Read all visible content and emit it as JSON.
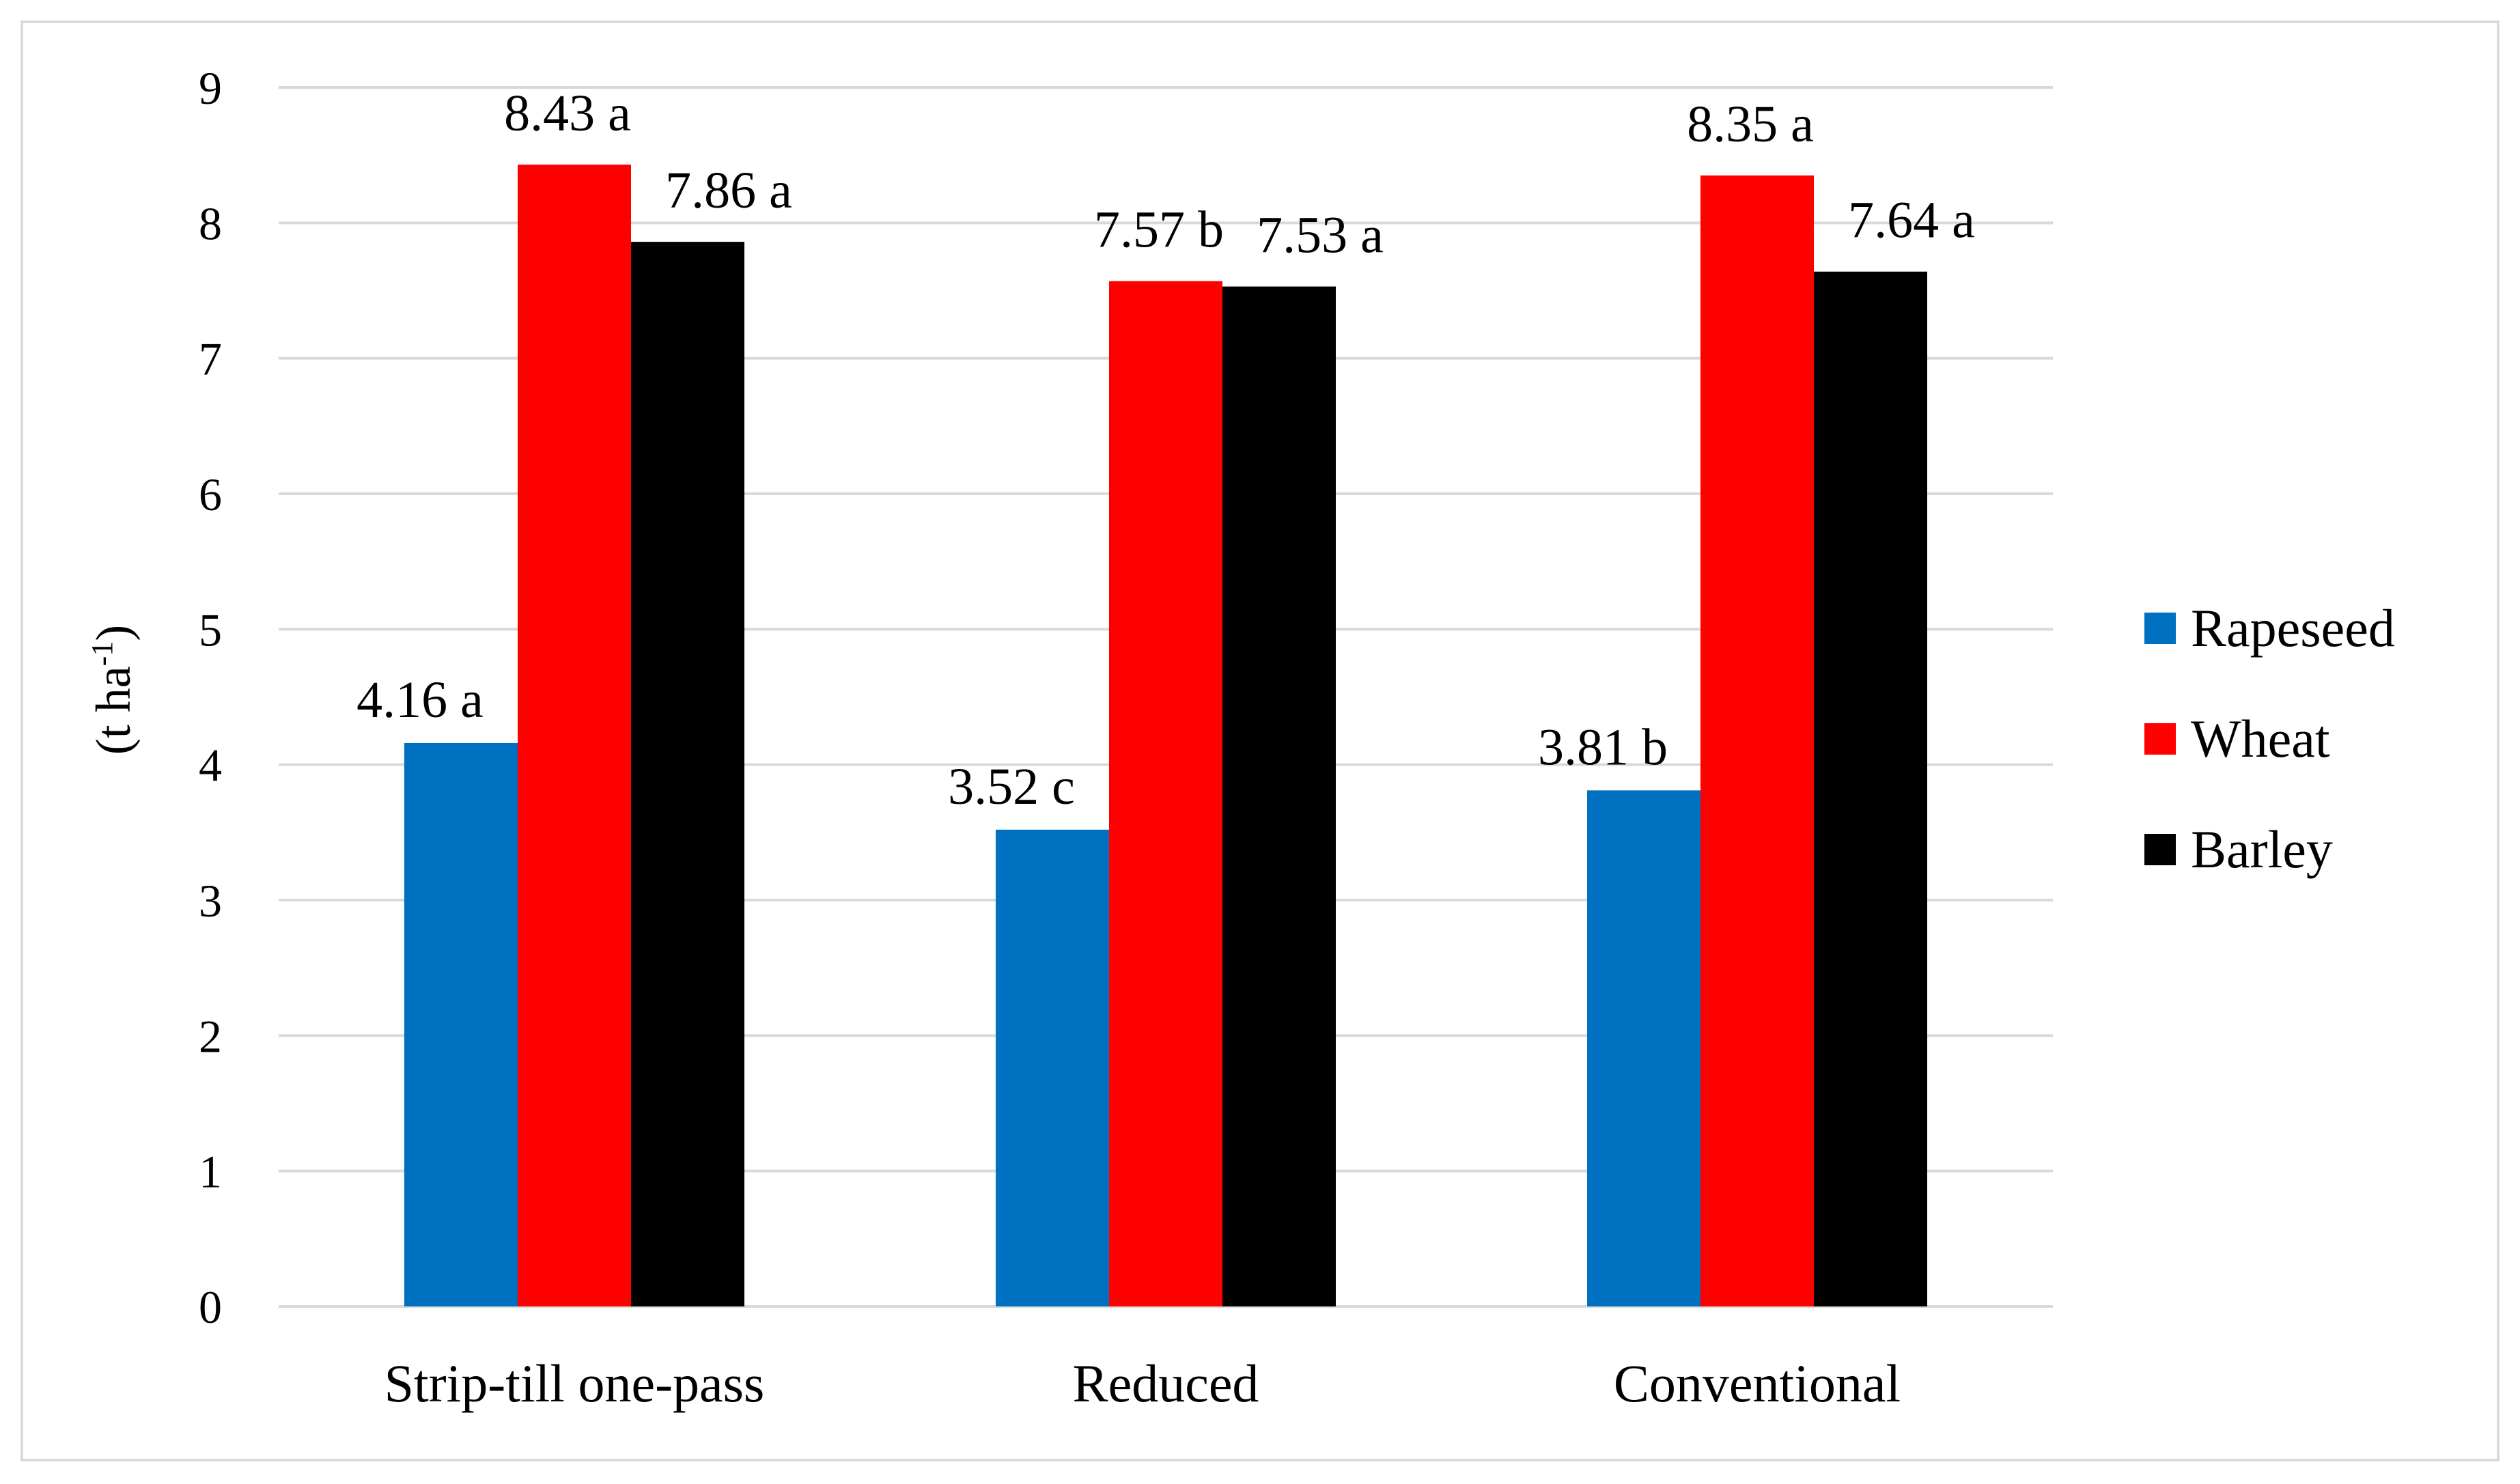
{
  "chart_data": {
    "type": "bar",
    "title": "",
    "xlabel": "",
    "ylabel": {
      "main": "(t ha",
      "superscript": "-1",
      "close": ")"
    },
    "ylim": [
      0,
      9
    ],
    "yticks": [
      "0",
      "1",
      "2",
      "3",
      "4",
      "5",
      "6",
      "7",
      "8",
      "9"
    ],
    "grid": true,
    "legend_position": "right",
    "categories": [
      "Strip-till one-pass",
      "Reduced",
      "Conventional"
    ],
    "series": [
      {
        "name": "Rapeseed",
        "color": "#0070c0",
        "values": [
          4.16,
          3.52,
          3.81
        ],
        "labels": [
          "4.16 a",
          "3.52 c",
          "3.81 b"
        ]
      },
      {
        "name": "Wheat",
        "color": "#ff0000",
        "values": [
          8.43,
          7.57,
          8.35
        ],
        "labels": [
          "8.43 a",
          "7.57 b",
          "8.35 a"
        ]
      },
      {
        "name": "Barley",
        "color": "#000000",
        "values": [
          7.86,
          7.53,
          7.64
        ],
        "labels": [
          "7.86 a",
          "7.53 a",
          "7.64 a"
        ]
      }
    ]
  }
}
